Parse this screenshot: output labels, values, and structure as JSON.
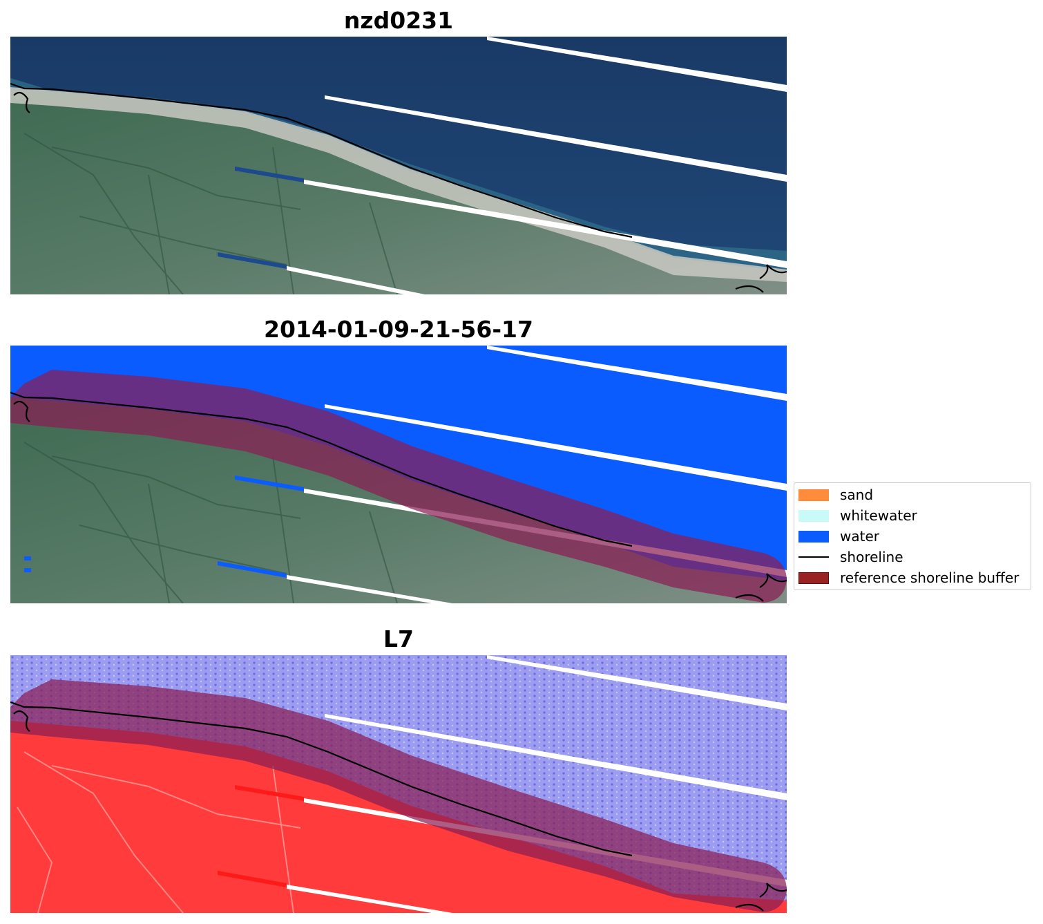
{
  "panels": [
    {
      "title": "nzd0231",
      "mode": "rgb"
    },
    {
      "title": "2014-01-09-21-56-17",
      "mode": "classified"
    },
    {
      "title": "L7",
      "mode": "index"
    }
  ],
  "legend": {
    "items": [
      {
        "label": "sand",
        "kind": "patch",
        "color": "#ff8c3a"
      },
      {
        "label": "whitewater",
        "kind": "patch",
        "color": "#c8fbf7"
      },
      {
        "label": "water",
        "kind": "patch",
        "color": "#0a5cff"
      },
      {
        "label": "shoreline",
        "kind": "line",
        "color": "#000000"
      },
      {
        "label": "reference shoreline buffer",
        "kind": "patch",
        "color": "#992222",
        "edge": "#5a1010"
      }
    ]
  },
  "colors": {
    "ocean_rgb": "#1c3d6b",
    "land_rgb": "#4d6e5c",
    "water_class": "#0a5cff",
    "buffer": "#8a1f55",
    "index_water": "#9a9aee",
    "index_land": "#ff3b3b",
    "scanline_gap": "#ffffff",
    "shoreline": "#000000"
  }
}
